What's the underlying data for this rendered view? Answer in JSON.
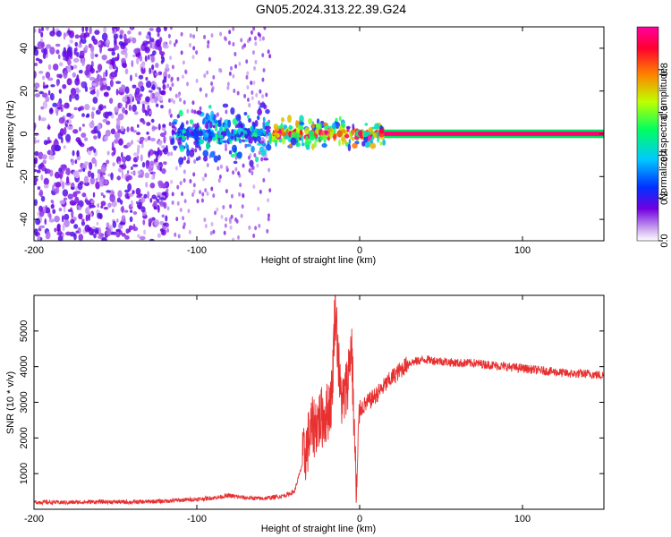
{
  "figure": {
    "title": "GN05.2024.313.22.39.G24"
  },
  "chart_data": [
    {
      "type": "heatmap",
      "xlabel": "Height of straight line (km)",
      "ylabel": "Frequency (Hz)",
      "xlim": [
        -200,
        150
      ],
      "ylim": [
        -50,
        50
      ],
      "x_ticks": [
        -200,
        -100,
        0,
        100
      ],
      "y_ticks": [
        -40,
        -20,
        0,
        20,
        40
      ],
      "colorbar": {
        "label": "Normalized spectral amplitude",
        "range": [
          0,
          1
        ],
        "ticks": [
          0.0,
          0.2,
          0.4,
          0.6,
          0.8
        ],
        "colormap": [
          "#ffffff",
          "#7000e0",
          "#0040ff",
          "#00c0ff",
          "#00ff60",
          "#c0ff00",
          "#ff8000",
          "#ff0030",
          "#ff00a0"
        ]
      },
      "regions": [
        {
          "x_range": [
            -200,
            -118
          ],
          "freq_range": [
            -50,
            50
          ],
          "amplitude": 0.12
        },
        {
          "x_range": [
            -115,
            -55
          ],
          "freq_range": [
            -15,
            15
          ],
          "amplitude": 0.35
        },
        {
          "x_range": [
            -55,
            15
          ],
          "freq_range": [
            -8,
            8
          ],
          "amplitude": 0.55
        },
        {
          "x_range": [
            15,
            150
          ],
          "freq_range": [
            -1,
            1
          ],
          "amplitude": 0.95
        }
      ],
      "grid": false
    },
    {
      "type": "line",
      "xlabel": "Height of straight line (km)",
      "ylabel": "SNR (10 * v/v)",
      "xlim": [
        -200,
        150
      ],
      "ylim": [
        0,
        6000
      ],
      "x_ticks": [
        -200,
        -100,
        0,
        100
      ],
      "y_ticks": [
        1000,
        2000,
        3000,
        4000,
        5000
      ],
      "line_color": "#e83030",
      "grid": false,
      "series": [
        {
          "x": [
            -200,
            -180,
            -160,
            -140,
            -120,
            -100,
            -90,
            -80,
            -70,
            -60,
            -50,
            -45,
            -40,
            -35,
            -30,
            -25,
            -20,
            -17,
            -15,
            -12,
            -10,
            -8,
            -5,
            -2,
            0,
            5,
            10,
            20,
            30,
            40,
            50,
            60,
            70,
            80,
            90,
            100,
            110,
            120,
            130,
            140,
            150
          ],
          "values": [
            200,
            190,
            210,
            200,
            230,
            280,
            320,
            380,
            320,
            300,
            350,
            400,
            500,
            1300,
            2200,
            2500,
            2700,
            3200,
            5900,
            3300,
            3000,
            3400,
            4700,
            300,
            2800,
            3000,
            3200,
            3700,
            4100,
            4200,
            4150,
            4100,
            4100,
            4050,
            4000,
            3950,
            3900,
            3850,
            3800,
            3800,
            3750
          ]
        }
      ]
    }
  ]
}
